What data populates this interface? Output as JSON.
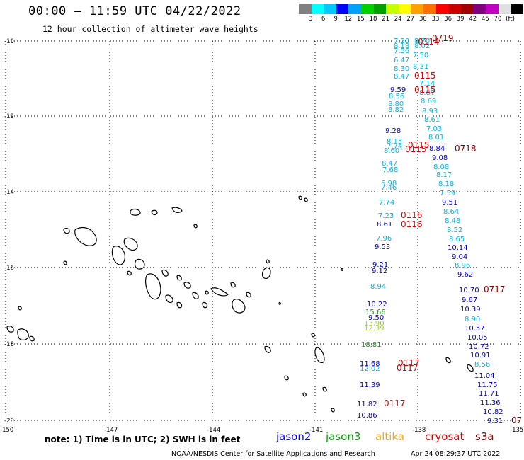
{
  "header": {
    "title": "00:00 – 11:59 UTC 04/22/2022",
    "subtitle": "12 hour collection of altimeter wave heights"
  },
  "colorbar": {
    "colors": [
      "#808080",
      "#00ffff",
      "#00c8ff",
      "#0000ff",
      "#00a0ff",
      "#00d000",
      "#00a000",
      "#c8ff00",
      "#ffff00",
      "#ffa000",
      "#ff7000",
      "#ff0000",
      "#c80000",
      "#a00000",
      "#800080",
      "#c000c0",
      "#e0e0e0",
      "#000000"
    ],
    "labels": [
      "3",
      "6",
      "9",
      "12",
      "15",
      "18",
      "21",
      "24",
      "27",
      "30",
      "33",
      "36",
      "39",
      "42",
      "45",
      "70",
      "(ft)"
    ]
  },
  "axes": {
    "y_labels": [
      "-10",
      "-12",
      "-14",
      "-16",
      "-18",
      "-20"
    ],
    "x_labels": [
      "-150",
      "-147",
      "-144",
      "-141",
      "-138",
      "-135"
    ]
  },
  "observations": [
    {
      "v": "7.20",
      "c": "#00b4e6"
    },
    {
      "v": "8.70",
      "c": "#00b4e6"
    },
    {
      "v": "8.18",
      "c": "#00b4e6"
    },
    {
      "v": "8.02",
      "c": "#00b4e6"
    },
    {
      "v": "7.56",
      "c": "#00b4e6"
    },
    {
      "v": "7.50",
      "c": "#00b4e6"
    },
    {
      "v": "6.47",
      "c": "#00b4e6"
    },
    {
      "v": "8.31",
      "c": "#00b4e6"
    },
    {
      "v": "8.30",
      "c": "#00b4e6"
    },
    {
      "v": "8.47",
      "c": "#00b4e6"
    },
    {
      "v": "7.14",
      "c": "#00b4e6"
    },
    {
      "v": "9.59",
      "c": "#0000cc"
    },
    {
      "v": "8.87",
      "c": "#00b4e6"
    },
    {
      "v": "8.56",
      "c": "#00b4e6"
    },
    {
      "v": "8.69",
      "c": "#00b4e6"
    },
    {
      "v": "8.80",
      "c": "#00b4e6"
    },
    {
      "v": "8.82",
      "c": "#00b4e6"
    },
    {
      "v": "8.93",
      "c": "#00b4e6"
    },
    {
      "v": "8.61",
      "c": "#00b4e6"
    },
    {
      "v": "7.03",
      "c": "#00b4e6"
    },
    {
      "v": "9.28",
      "c": "#0000cc"
    },
    {
      "v": "8.01",
      "c": "#00b4e6"
    },
    {
      "v": "8.15",
      "c": "#00b4e6"
    },
    {
      "v": "7.74",
      "c": "#00b4e6"
    },
    {
      "v": "8.84",
      "c": "#0000cc"
    },
    {
      "v": "8.60",
      "c": "#00b4e6"
    },
    {
      "v": "9.08",
      "c": "#0000cc"
    },
    {
      "v": "8.47",
      "c": "#00b4e6"
    },
    {
      "v": "8.08",
      "c": "#00b4e6"
    },
    {
      "v": "7.68",
      "c": "#00b4e6"
    },
    {
      "v": "8.17",
      "c": "#00b4e6"
    },
    {
      "v": "6.98",
      "c": "#00b4e6"
    },
    {
      "v": "8.18",
      "c": "#00b4e6"
    },
    {
      "v": "7.46",
      "c": "#00b4e6"
    },
    {
      "v": "7.59",
      "c": "#00b4e6"
    },
    {
      "v": "9.51",
      "c": "#0000cc"
    },
    {
      "v": "7.74",
      "c": "#00b4e6"
    },
    {
      "v": "8.64",
      "c": "#00b4e6"
    },
    {
      "v": "7.23",
      "c": "#00b4e6"
    },
    {
      "v": "8.48",
      "c": "#00b4e6"
    },
    {
      "v": "8.61",
      "c": "#0000cc"
    },
    {
      "v": "8.52",
      "c": "#00b4e6"
    },
    {
      "v": "7.96",
      "c": "#00b4e6"
    },
    {
      "v": "8.65",
      "c": "#00b4e6"
    },
    {
      "v": "9.53",
      "c": "#0000cc"
    },
    {
      "v": "10.14",
      "c": "#0000cc"
    },
    {
      "v": "9.04",
      "c": "#0000cc"
    },
    {
      "v": "9.21",
      "c": "#0000cc"
    },
    {
      "v": "8.96",
      "c": "#00b4e6"
    },
    {
      "v": "9.62",
      "c": "#0000cc"
    },
    {
      "v": "9.12",
      "c": "#0000cc"
    },
    {
      "v": "8.94",
      "c": "#00b4e6"
    },
    {
      "v": "10.70",
      "c": "#0000cc"
    },
    {
      "v": "9.67",
      "c": "#0000cc"
    },
    {
      "v": "10.22",
      "c": "#0000cc"
    },
    {
      "v": "10.39",
      "c": "#0000cc"
    },
    {
      "v": "15.66",
      "c": "#00a000"
    },
    {
      "v": "9.50",
      "c": "#0000cc"
    },
    {
      "v": "8.90",
      "c": "#00b4e6"
    },
    {
      "v": "13.90",
      "c": "#9acd32"
    },
    {
      "v": "12.39",
      "c": "#9acd32"
    },
    {
      "v": "10.57",
      "c": "#0000cc"
    },
    {
      "v": "10.05",
      "c": "#0000cc"
    },
    {
      "v": "18.81",
      "c": "#00a000"
    },
    {
      "v": "10.72",
      "c": "#0000cc"
    },
    {
      "v": "10.91",
      "c": "#0000cc"
    },
    {
      "v": "8.56",
      "c": "#00b4e6"
    },
    {
      "v": "11.68",
      "c": "#0000cc"
    },
    {
      "v": "12.02",
      "c": "#00b4e6"
    },
    {
      "v": "11.04",
      "c": "#0000cc"
    },
    {
      "v": "11.39",
      "c": "#0000cc"
    },
    {
      "v": "11.75",
      "c": "#0000cc"
    },
    {
      "v": "11.71",
      "c": "#0000cc"
    },
    {
      "v": "11.82",
      "c": "#0000cc"
    },
    {
      "v": "11.36",
      "c": "#0000cc"
    },
    {
      "v": "10.86",
      "c": "#0000cc"
    },
    {
      "v": "10.82",
      "c": "#0000cc"
    },
    {
      "v": "9.31",
      "c": "#0000cc"
    }
  ],
  "time_tags": [
    {
      "t": "0719",
      "c": "#8b0000"
    },
    {
      "t": "0114",
      "c": "#dd0000"
    },
    {
      "t": "0115",
      "c": "#dd0000"
    },
    {
      "t": "0115",
      "c": "#dd0000"
    },
    {
      "t": "0115",
      "c": "#dd0000"
    },
    {
      "t": "0115",
      "c": "#dd0000"
    },
    {
      "t": "0718",
      "c": "#8b0000"
    },
    {
      "t": "0116",
      "c": "#dd0000"
    },
    {
      "t": "0116",
      "c": "#dd0000"
    },
    {
      "t": "0717",
      "c": "#8b0000"
    },
    {
      "t": "0117",
      "c": "#dd0000"
    },
    {
      "t": "0117",
      "c": "#dd0000"
    },
    {
      "t": "0117",
      "c": "#dd0000"
    },
    {
      "t": "07",
      "c": "#8b0000"
    }
  ],
  "footer": {
    "note": "note: 1) Time is in UTC; 2) SWH is in feet",
    "satellites": [
      {
        "name": "jason2",
        "color": "#0000ff"
      },
      {
        "name": "jason3",
        "color": "#00a000"
      },
      {
        "name": "altika",
        "color": "#ffa500"
      },
      {
        "name": "cryosat",
        "color": "#dd0000"
      },
      {
        "name": "s3a",
        "color": "#8b0000"
      }
    ],
    "credit": "NOAA/NESDIS Center for Satellite Applications and Research",
    "timestamp": "Apr 24 08:29:37 UTC 2022"
  }
}
